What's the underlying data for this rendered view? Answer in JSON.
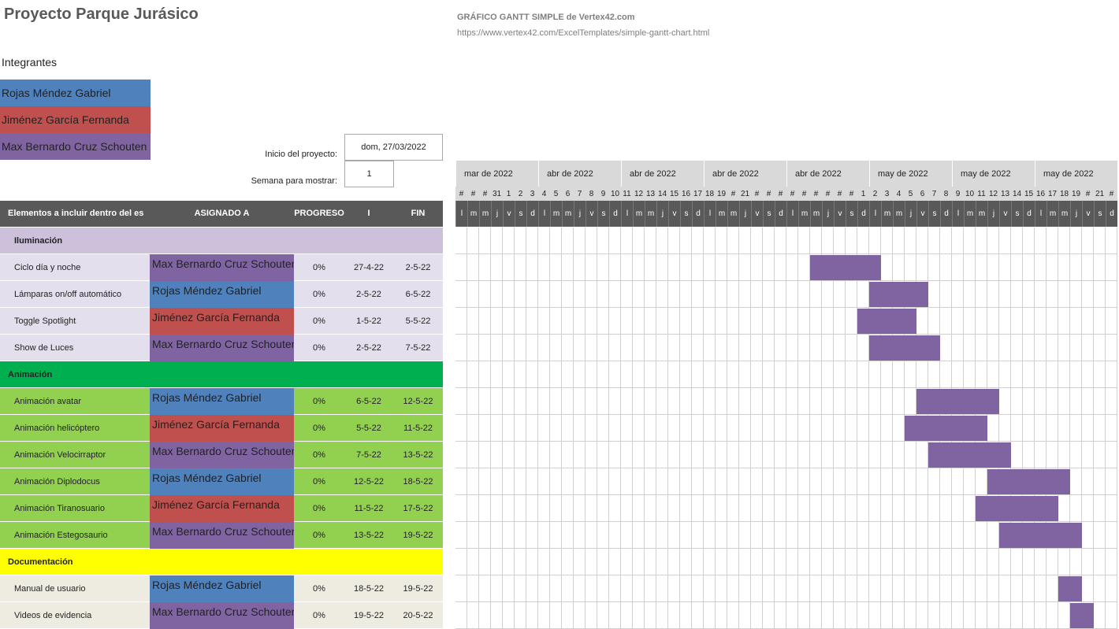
{
  "header": {
    "title": "Proyecto Parque Jurásico",
    "template_title": "GRÁFICO GANTT SIMPLE de Vertex42.com",
    "template_url": "https://www.vertex42.com/ExcelTemplates/simple-gantt-chart.html"
  },
  "members": {
    "label": "Integrantes",
    "items": [
      {
        "name": "Rojas Méndez Gabriel",
        "color": "#4f81bd"
      },
      {
        "name": "Jiménez García Fernanda",
        "color": "#c0504d"
      },
      {
        "name": "Max Bernardo Cruz Schouten",
        "color": "#8064a2"
      }
    ]
  },
  "project": {
    "start_label": "Inicio del proyecto:",
    "start": "dom, 27/03/2022",
    "week_label": "Semana para mostrar:",
    "week": "1"
  },
  "table": {
    "columns": [
      "Elementos  a incluir dentro del es",
      "ASIGNADO A",
      "PROGRESO",
      "I",
      "FIN"
    ],
    "sections": [
      {
        "name": "Iluminación",
        "color": "#ccc0da",
        "row_color": "#e4dfec",
        "tasks": [
          {
            "name": "Ciclo día y noche",
            "assigned": "Max Bernardo Cruz Schouten",
            "progress": "0%",
            "start": "27-4-22",
            "end": "2-5-22"
          },
          {
            "name": "Lámparas on/off automático",
            "assigned": "Rojas Méndez Gabriel",
            "progress": "0%",
            "start": "2-5-22",
            "end": "6-5-22"
          },
          {
            "name": "Toggle Spotlight",
            "assigned": "Jiménez García Fernanda",
            "progress": "0%",
            "start": "1-5-22",
            "end": "5-5-22"
          },
          {
            "name": "Show de Luces",
            "assigned": "Max Bernardo Cruz Schouten",
            "progress": "0%",
            "start": "2-5-22",
            "end": "7-5-22"
          }
        ]
      },
      {
        "name": "Animación",
        "color": "#00b050",
        "row_color": "#92d050",
        "tasks": [
          {
            "name": "Animación avatar",
            "assigned": "Rojas Méndez Gabriel",
            "progress": "0%",
            "start": "6-5-22",
            "end": "12-5-22"
          },
          {
            "name": "Animación helicóptero",
            "assigned": "Jiménez García Fernanda",
            "progress": "0%",
            "start": "5-5-22",
            "end": "11-5-22"
          },
          {
            "name": "Animación Velocirraptor",
            "assigned": "Max Bernardo Cruz Schouten",
            "progress": "0%",
            "start": "7-5-22",
            "end": "13-5-22"
          },
          {
            "name": "Animación Diplodocus",
            "assigned": "Rojas Méndez Gabriel",
            "progress": "0%",
            "start": "12-5-22",
            "end": "18-5-22"
          },
          {
            "name": "Animación Tiranosuario",
            "assigned": "Jiménez García Fernanda",
            "progress": "0%",
            "start": "11-5-22",
            "end": "17-5-22"
          },
          {
            "name": "Animación Estegosaurio",
            "assigned": "Max Bernardo Cruz Schouten",
            "progress": "0%",
            "start": "13-5-22",
            "end": "19-5-22"
          }
        ]
      },
      {
        "name": "Documentación",
        "color": "#ffff00",
        "row_color": "#eeece1",
        "tasks": [
          {
            "name": "Manual de usuario",
            "assigned": "Rojas Méndez Gabriel",
            "progress": "0%",
            "start": "18-5-22",
            "end": "19-5-22"
          },
          {
            "name": "Videos de evidencia",
            "assigned": "Max Bernardo Cruz Schouten",
            "progress": "0%",
            "start": "19-5-22",
            "end": "20-5-22"
          }
        ]
      }
    ]
  },
  "timeline": {
    "bar_color": "#8064a2",
    "weekdays": [
      "l",
      "m",
      "m",
      "j",
      "v",
      "s",
      "d"
    ],
    "weeks": [
      {
        "label": "mar de 2022",
        "days": [
          "#",
          "#",
          "#",
          "31",
          "1",
          "2",
          "3"
        ]
      },
      {
        "label": "abr de 2022",
        "days": [
          "4",
          "5",
          "6",
          "7",
          "8",
          "9",
          "10"
        ]
      },
      {
        "label": "abr de 2022",
        "days": [
          "11",
          "12",
          "13",
          "14",
          "15",
          "16",
          "17"
        ]
      },
      {
        "label": "abr de 2022",
        "days": [
          "18",
          "19",
          "#",
          "21",
          "#",
          "#",
          "#"
        ]
      },
      {
        "label": "abr de 2022",
        "days": [
          "#",
          "#",
          "#",
          "#",
          "#",
          "#",
          "1"
        ]
      },
      {
        "label": "may de 2022",
        "days": [
          "2",
          "3",
          "4",
          "5",
          "6",
          "7",
          "8"
        ]
      },
      {
        "label": "may de 2022",
        "days": [
          "9",
          "10",
          "11",
          "12",
          "13",
          "14",
          "15"
        ]
      },
      {
        "label": "may de 2022",
        "days": [
          "16",
          "17",
          "18",
          "19",
          "#",
          "21",
          "#"
        ]
      }
    ]
  }
}
